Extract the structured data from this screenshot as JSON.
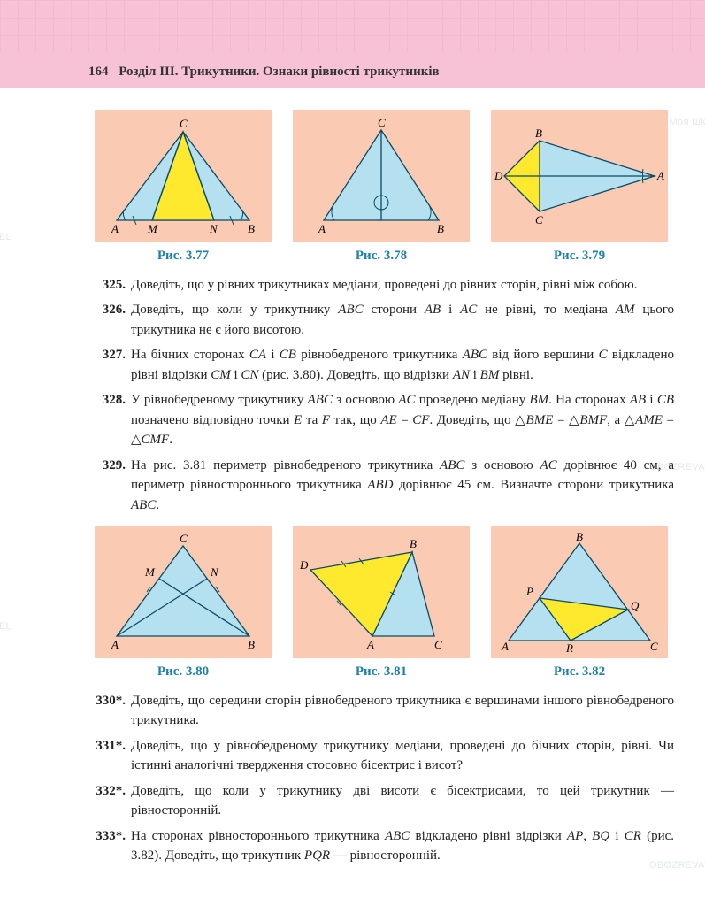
{
  "header": {
    "page_num": "164",
    "chapter": "Розділ III. Трикутники. Ознаки рівності трикутників"
  },
  "figrow1": {
    "fig1": {
      "caption": "Рис. 3.77",
      "bg": "#facab2",
      "triangle_fill": "#b4e0ef",
      "inner_fill": "#ffe92e",
      "stroke": "#0a4a63",
      "labels": {
        "A": "A",
        "M": "M",
        "N": "N",
        "B": "B",
        "C": "C"
      }
    },
    "fig2": {
      "caption": "Рис. 3.78",
      "bg": "#facab2",
      "triangle_fill": "#b4e0ef",
      "stroke": "#0a4a63",
      "labels": {
        "A": "A",
        "B": "B",
        "C": "C"
      }
    },
    "fig3": {
      "caption": "Рис. 3.79",
      "bg": "#facab2",
      "triangle_fill": "#b4e0ef",
      "inner_fill": "#ffe92e",
      "stroke": "#0a4a63",
      "labels": {
        "A": "A",
        "B": "B",
        "C": "C",
        "D": "D"
      }
    }
  },
  "problems1": [
    {
      "num": "325.",
      "text": "Доведіть, що у рівних трикутниках медіани, проведені до рівних сторін, рівні між собою."
    },
    {
      "num": "326.",
      "text": "Доведіть, що коли у трикутнику <i>ABC</i> сторони <i>AB</i> і <i>AC</i> не рівні, то медіана <i>AM</i> цього трикутника не є його висотою."
    },
    {
      "num": "327.",
      "text": "На бічних сторонах <i>CA</i> і <i>CB</i> рівнобедреного трикутника <i>ABC</i> від його вершини <i>C</i> відкладено рівні відрізки <i>CM</i> і <i>CN</i> (рис. 3.80). Доведіть, що відрізки <i>AN</i> і <i>BM</i> рівні."
    },
    {
      "num": "328.",
      "text": "У рівнобедреному трикутнику <i>ABC</i> з основою <i>AC</i> проведено медіану <i>BM</i>. На сторонах <i>AB</i> і <i>CB</i> позначено відповідно точки <i>E</i> та <i>F</i> так, що <i>AE</i> = <i>CF</i>. Доведіть, що △<i>BME</i> = △<i>BMF</i>, а △<i>AME</i> = △<i>CMF</i>."
    },
    {
      "num": "329.",
      "text": "На рис. 3.81 периметр рівнобедреного трикутника <i>ABC</i> з основою <i>AC</i> дорівнює 40 см, а периметр рівностороннього трикутника <i>ABD</i> дорівнює 45 см. Визначте сторони трикутника <i>ABC</i>."
    }
  ],
  "figrow2": {
    "fig1": {
      "caption": "Рис. 3.80",
      "bg": "#facab2",
      "triangle_fill": "#b4e0ef",
      "stroke": "#0a4a63",
      "labels": {
        "A": "A",
        "B": "B",
        "C": "C",
        "M": "M",
        "N": "N"
      }
    },
    "fig2": {
      "caption": "Рис. 3.81",
      "bg": "#facab2",
      "triangle_fill": "#b4e0ef",
      "inner_fill": "#ffe92e",
      "stroke": "#0a4a63",
      "labels": {
        "A": "A",
        "B": "B",
        "C": "C",
        "D": "D"
      }
    },
    "fig3": {
      "caption": "Рис. 3.82",
      "bg": "#facab2",
      "triangle_fill": "#b4e0ef",
      "inner_fill": "#ffe92e",
      "stroke": "#0a4a63",
      "labels": {
        "A": "A",
        "B": "B",
        "C": "C",
        "P": "P",
        "Q": "Q",
        "R": "R"
      }
    }
  },
  "problems2": [
    {
      "num": "330*.",
      "text": "Доведіть, що середини сторін рівнобедреного трикутника є вершинами іншого рівнобедреного трикутника."
    },
    {
      "num": "331*.",
      "text": "Доведіть, що у рівнобедреному трикутнику медіани, проведені до бічних сторін, рівні. Чи істинні аналогічні твердження стосовно бісектрис і висот?"
    },
    {
      "num": "332*.",
      "text": "Доведіть, що коли у трикутнику дві висоти є бісектрисами, то цей трикутник — рівносторонній."
    },
    {
      "num": "333*.",
      "text": "На сторонах рівностороннього трикутника <i>ABC</i> відкладено рівні відрізки <i>AP</i>, <i>BQ</i> і <i>CR</i> (рис. 3.82). Доведіть, що трикутник <i>PQR</i> — рівносторонній."
    }
  ],
  "watermark": {
    "text1": "Моя Школа",
    "text2": "OBOZREVATEL"
  },
  "colors": {
    "header_bg": "#f7c2d6",
    "caption": "#1e7fa8",
    "fig_bg": "#facab2"
  }
}
